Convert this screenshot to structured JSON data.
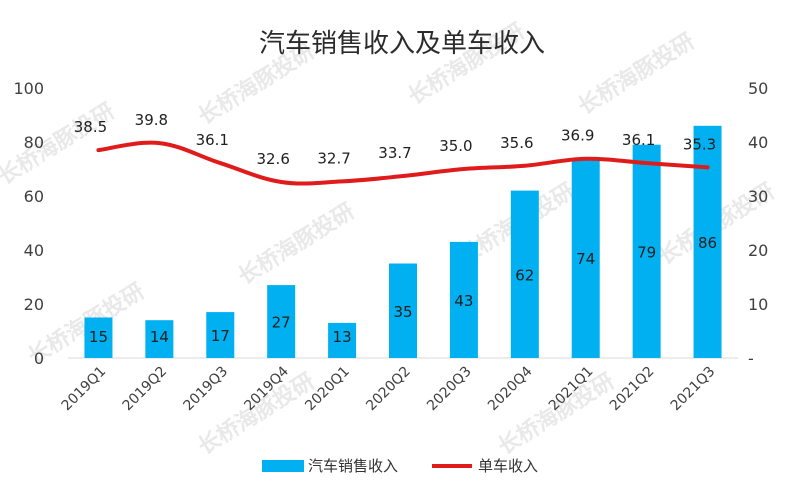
{
  "watermark": "长桥海豚投研",
  "chart_data": {
    "type": "bar",
    "title": "汽车销售收入及单车收入",
    "categories": [
      "2019Q1",
      "2019Q2",
      "2019Q3",
      "2019Q4",
      "2020Q1",
      "2020Q2",
      "2020Q3",
      "2020Q4",
      "2021Q1",
      "2021Q2",
      "2021Q3"
    ],
    "series": [
      {
        "name": "汽车销售收入",
        "type": "bar",
        "axis": "left",
        "color": "#00b0f0",
        "values": [
          15,
          14,
          17,
          27,
          13,
          35,
          43,
          62,
          74,
          79,
          86
        ]
      },
      {
        "name": "单车收入",
        "type": "line",
        "axis": "right",
        "color": "#e01b1b",
        "values": [
          38.5,
          39.8,
          36.1,
          32.6,
          32.7,
          33.7,
          35.0,
          35.6,
          36.9,
          36.1,
          35.3
        ]
      }
    ],
    "y_left": {
      "min": 0,
      "max": 100,
      "ticks": [
        "-",
        "20",
        "40",
        "60",
        "80",
        "100"
      ]
    },
    "y_right": {
      "min": 0,
      "max": 50,
      "ticks": [
        "-",
        "10",
        "20",
        "30",
        "40",
        "50"
      ]
    },
    "grid": false,
    "legend": "bottom"
  }
}
